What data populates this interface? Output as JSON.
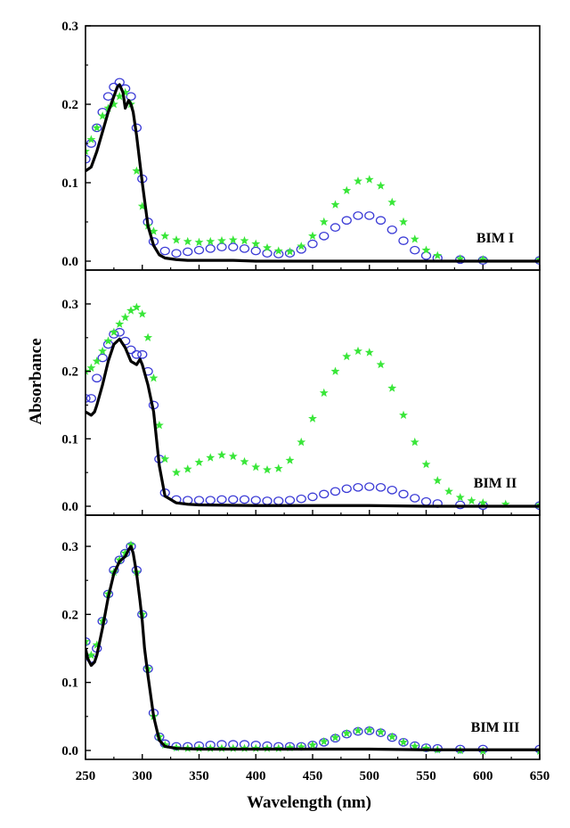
{
  "chart_data": {
    "type": "line",
    "xlabel": "Wavelength (nm)",
    "ylabel": "Absorbance",
    "xlim": [
      250,
      650
    ],
    "x_ticks": [
      "250",
      "300",
      "350",
      "400",
      "450",
      "500",
      "550",
      "600",
      "650"
    ],
    "panels": [
      {
        "label": "BIM I",
        "ylim": [
          -0.01,
          0.3
        ],
        "y_ticks": [
          "0.0",
          "0.1",
          "0.2",
          "0.3"
        ],
        "series": [
          {
            "style": "line",
            "color": "#000000",
            "x": [
              250,
              255,
              260,
              265,
              270,
              275,
              278,
              280,
              283,
              285,
              288,
              290,
              292,
              295,
              300,
              305,
              310,
              315,
              320,
              330,
              340,
              350,
              360,
              380,
              400,
              450,
              500,
              550,
              600,
              650
            ],
            "y": [
              0.115,
              0.12,
              0.14,
              0.165,
              0.19,
              0.21,
              0.222,
              0.225,
              0.215,
              0.195,
              0.205,
              0.2,
              0.19,
              0.16,
              0.1,
              0.045,
              0.02,
              0.008,
              0.004,
              0.002,
              0.001,
              0.001,
              0.001,
              0.001,
              0.0,
              0.0,
              0.0,
              0.0,
              0.0,
              0.0
            ]
          },
          {
            "style": "circles",
            "color": "#3b3bd6",
            "x": [
              250,
              255,
              260,
              265,
              270,
              275,
              280,
              285,
              290,
              295,
              300,
              305,
              310,
              320,
              330,
              340,
              350,
              360,
              370,
              380,
              390,
              400,
              410,
              420,
              430,
              440,
              450,
              460,
              470,
              480,
              490,
              500,
              510,
              520,
              530,
              540,
              550,
              560,
              580,
              600,
              650
            ],
            "y": [
              0.13,
              0.15,
              0.17,
              0.19,
              0.21,
              0.222,
              0.228,
              0.22,
              0.21,
              0.17,
              0.105,
              0.05,
              0.025,
              0.013,
              0.01,
              0.012,
              0.014,
              0.016,
              0.018,
              0.018,
              0.016,
              0.013,
              0.01,
              0.009,
              0.01,
              0.015,
              0.022,
              0.032,
              0.043,
              0.052,
              0.058,
              0.058,
              0.052,
              0.04,
              0.026,
              0.014,
              0.007,
              0.004,
              0.002,
              0.001,
              0.001
            ]
          },
          {
            "style": "stars",
            "color": "#39e639",
            "x": [
              250,
              255,
              260,
              265,
              270,
              275,
              280,
              285,
              290,
              295,
              300,
              305,
              310,
              320,
              330,
              340,
              350,
              360,
              370,
              380,
              390,
              400,
              410,
              420,
              430,
              440,
              450,
              460,
              470,
              480,
              490,
              500,
              510,
              520,
              530,
              540,
              550,
              560,
              580,
              600,
              650
            ],
            "y": [
              0.14,
              0.155,
              0.17,
              0.185,
              0.195,
              0.2,
              0.21,
              0.215,
              0.2,
              0.115,
              0.07,
              0.045,
              0.038,
              0.032,
              0.027,
              0.025,
              0.024,
              0.025,
              0.026,
              0.027,
              0.026,
              0.022,
              0.017,
              0.013,
              0.012,
              0.019,
              0.032,
              0.05,
              0.072,
              0.09,
              0.102,
              0.104,
              0.096,
              0.075,
              0.05,
              0.028,
              0.014,
              0.007,
              0.003,
              0.002,
              0.002
            ]
          }
        ]
      },
      {
        "label": "BIM II",
        "ylim": [
          -0.01,
          0.33
        ],
        "y_ticks": [
          "0.0",
          "0.1",
          "0.2",
          "0.3"
        ],
        "series": [
          {
            "style": "line",
            "color": "#000000",
            "x": [
              250,
              255,
              258,
              260,
              265,
              270,
              275,
              280,
              285,
              290,
              295,
              298,
              300,
              305,
              310,
              315,
              320,
              330,
              340,
              350,
              400,
              450,
              500,
              550,
              600,
              650
            ],
            "y": [
              0.14,
              0.135,
              0.14,
              0.15,
              0.18,
              0.215,
              0.24,
              0.248,
              0.235,
              0.215,
              0.21,
              0.218,
              0.21,
              0.18,
              0.14,
              0.06,
              0.015,
              0.005,
              0.003,
              0.002,
              0.001,
              0.001,
              0.001,
              0.0,
              0.0,
              0.0
            ]
          },
          {
            "style": "circles",
            "color": "#3b3bd6",
            "x": [
              250,
              255,
              260,
              265,
              270,
              275,
              280,
              285,
              290,
              295,
              300,
              305,
              310,
              315,
              320,
              330,
              340,
              350,
              360,
              370,
              380,
              390,
              400,
              410,
              420,
              430,
              440,
              450,
              460,
              470,
              480,
              490,
              500,
              510,
              520,
              530,
              540,
              550,
              560,
              580,
              600,
              650
            ],
            "y": [
              0.16,
              0.16,
              0.19,
              0.22,
              0.24,
              0.255,
              0.258,
              0.245,
              0.232,
              0.225,
              0.225,
              0.2,
              0.15,
              0.07,
              0.02,
              0.01,
              0.009,
              0.009,
              0.009,
              0.01,
              0.01,
              0.01,
              0.009,
              0.008,
              0.008,
              0.009,
              0.011,
              0.014,
              0.018,
              0.022,
              0.026,
              0.028,
              0.029,
              0.028,
              0.024,
              0.018,
              0.012,
              0.007,
              0.004,
              0.002,
              0.001,
              0.001
            ]
          },
          {
            "style": "stars",
            "color": "#39e639",
            "x": [
              250,
              255,
              260,
              265,
              270,
              275,
              280,
              285,
              290,
              295,
              300,
              305,
              310,
              315,
              320,
              330,
              340,
              350,
              360,
              370,
              380,
              390,
              400,
              410,
              420,
              430,
              440,
              450,
              460,
              470,
              480,
              490,
              500,
              510,
              520,
              530,
              540,
              550,
              560,
              570,
              580,
              590,
              600,
              620,
              650
            ],
            "y": [
              0.2,
              0.205,
              0.215,
              0.23,
              0.245,
              0.258,
              0.27,
              0.28,
              0.29,
              0.295,
              0.285,
              0.25,
              0.19,
              0.12,
              0.07,
              0.05,
              0.055,
              0.065,
              0.072,
              0.076,
              0.074,
              0.066,
              0.058,
              0.054,
              0.056,
              0.068,
              0.095,
              0.13,
              0.168,
              0.2,
              0.222,
              0.23,
              0.228,
              0.21,
              0.175,
              0.135,
              0.095,
              0.062,
              0.038,
              0.022,
              0.013,
              0.008,
              0.005,
              0.003,
              0.002
            ]
          }
        ]
      },
      {
        "label": "BIM III",
        "ylim": [
          -0.01,
          0.34
        ],
        "y_ticks": [
          "0.0",
          "0.1",
          "0.2",
          "0.3"
        ],
        "series": [
          {
            "style": "line",
            "color": "#000000",
            "x": [
              250,
              252,
              255,
              258,
              260,
              265,
              270,
              275,
              280,
              285,
              288,
              290,
              292,
              295,
              298,
              300,
              302,
              305,
              310,
              315,
              320,
              330,
              350,
              400,
              450,
              500,
              550,
              600,
              650
            ],
            "y": [
              0.15,
              0.135,
              0.125,
              0.13,
              0.14,
              0.18,
              0.225,
              0.26,
              0.278,
              0.285,
              0.295,
              0.3,
              0.29,
              0.26,
              0.22,
              0.19,
              0.15,
              0.11,
              0.05,
              0.015,
              0.006,
              0.003,
              0.002,
              0.002,
              0.002,
              0.002,
              0.001,
              0.001,
              0.001
            ]
          },
          {
            "style": "circles",
            "color": "#3b3bd6",
            "x": [
              250,
              255,
              260,
              265,
              270,
              275,
              280,
              285,
              290,
              295,
              300,
              305,
              310,
              315,
              320,
              330,
              340,
              350,
              360,
              370,
              380,
              390,
              400,
              410,
              420,
              430,
              440,
              450,
              460,
              470,
              480,
              490,
              500,
              510,
              520,
              530,
              540,
              550,
              560,
              580,
              600,
              650
            ],
            "y": [
              0.16,
              0.135,
              0.15,
              0.19,
              0.23,
              0.265,
              0.28,
              0.29,
              0.3,
              0.265,
              0.2,
              0.12,
              0.055,
              0.02,
              0.01,
              0.006,
              0.006,
              0.007,
              0.008,
              0.009,
              0.009,
              0.009,
              0.008,
              0.007,
              0.006,
              0.006,
              0.006,
              0.008,
              0.012,
              0.018,
              0.024,
              0.028,
              0.029,
              0.026,
              0.019,
              0.012,
              0.007,
              0.004,
              0.003,
              0.002,
              0.002,
              0.002
            ]
          },
          {
            "style": "stars",
            "color": "#39e639",
            "x": [
              250,
              255,
              260,
              265,
              270,
              275,
              280,
              285,
              290,
              295,
              300,
              305,
              310,
              315,
              320,
              330,
              340,
              350,
              360,
              370,
              380,
              390,
              400,
              410,
              420,
              430,
              440,
              450,
              460,
              470,
              480,
              490,
              500,
              510,
              520,
              530,
              540,
              550,
              560,
              580,
              600,
              650
            ],
            "y": [
              0.16,
              0.14,
              0.155,
              0.19,
              0.23,
              0.262,
              0.28,
              0.29,
              0.302,
              0.262,
              0.2,
              0.12,
              0.05,
              0.02,
              0.008,
              0.004,
              0.003,
              0.003,
              0.003,
              0.003,
              0.003,
              0.003,
              0.003,
              0.003,
              0.003,
              0.004,
              0.005,
              0.008,
              0.013,
              0.019,
              0.025,
              0.029,
              0.03,
              0.027,
              0.02,
              0.012,
              0.006,
              0.003,
              0.001,
              0.0,
              -0.001,
              -0.001
            ]
          }
        ]
      }
    ]
  }
}
